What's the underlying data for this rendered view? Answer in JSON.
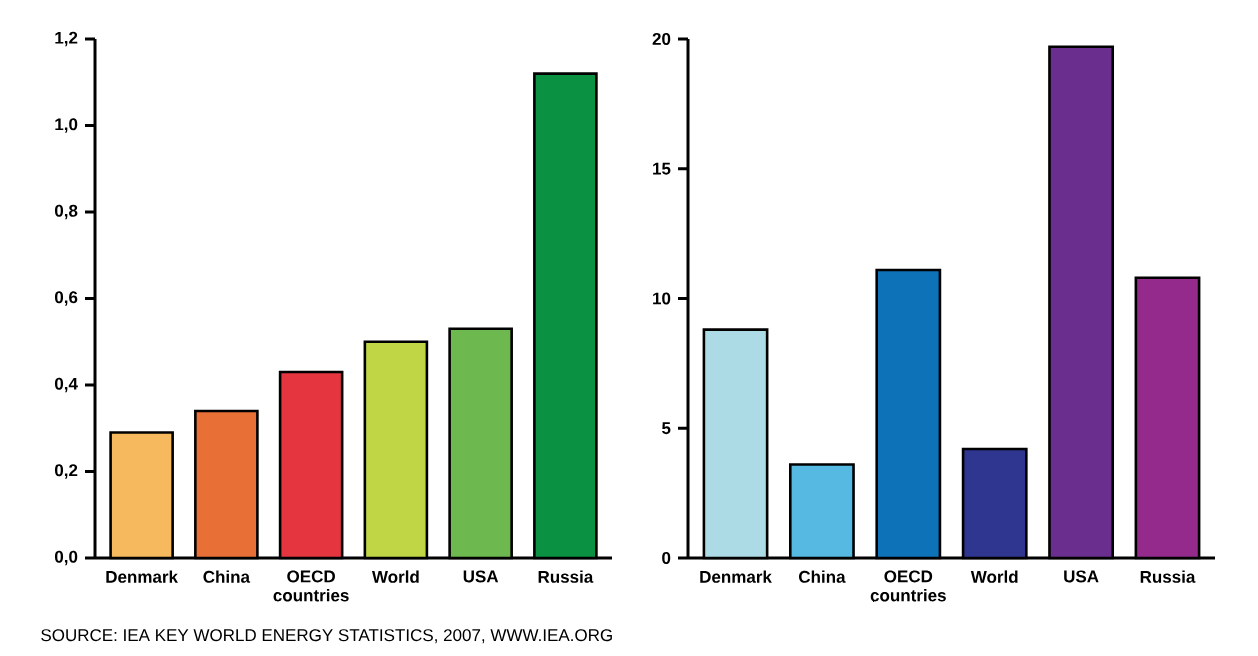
{
  "chart_data": [
    {
      "type": "bar",
      "categories": [
        "Denmark",
        "China",
        "OECD countries",
        "World",
        "USA",
        "Russia"
      ],
      "values": [
        0.29,
        0.34,
        0.43,
        0.5,
        0.53,
        1.12
      ],
      "colors": [
        "#f7b95e",
        "#e87036",
        "#e53640",
        "#c0d644",
        "#6db84f",
        "#0a9142"
      ],
      "ylim": [
        0,
        1.2
      ],
      "yticks": [
        {
          "value": 0,
          "label": "0,0"
        },
        {
          "value": 0.2,
          "label": "0,2"
        },
        {
          "value": 0.4,
          "label": "0,4"
        },
        {
          "value": 0.6,
          "label": "0,6"
        },
        {
          "value": 0.8,
          "label": "0,8"
        },
        {
          "value": 1.0,
          "label": "1,0"
        },
        {
          "value": 1.2,
          "label": "1,2"
        }
      ],
      "annotations": [
        "SOURCE: IEA KEY WORLD ENERGY STATISTICS, 2007, WWW.IEA.ORG"
      ]
    },
    {
      "type": "bar",
      "categories": [
        "Denmark",
        "China",
        "OECD countries",
        "World",
        "USA",
        "Russia"
      ],
      "values": [
        8.8,
        3.6,
        11.1,
        4.2,
        19.7,
        10.8
      ],
      "colors": [
        "#acdbe6",
        "#55b9e1",
        "#0e72b8",
        "#2e3690",
        "#6a2f8e",
        "#932a8c"
      ],
      "ylim": [
        0,
        20
      ],
      "yticks": [
        0,
        5,
        10,
        15,
        20
      ]
    }
  ]
}
